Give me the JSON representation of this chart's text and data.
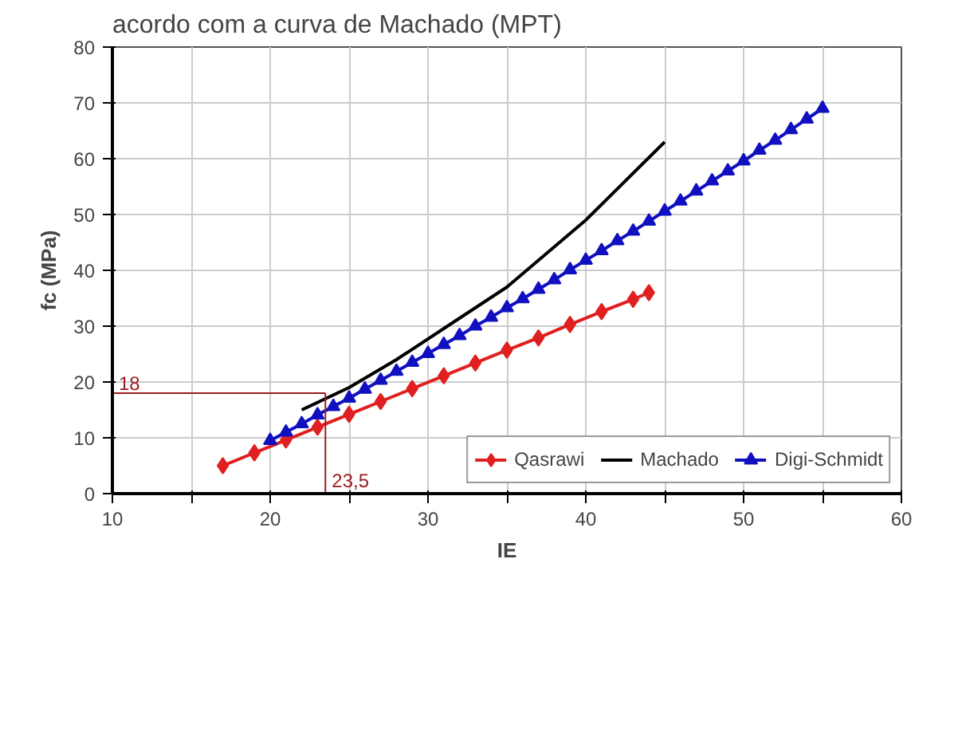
{
  "chart_data": {
    "type": "line",
    "title": "acordo com a curva de Machado (MPT)",
    "xlabel": "IE",
    "ylabel": "fc (MPa)",
    "xlim": [
      10,
      60
    ],
    "ylim": [
      0,
      80
    ],
    "xticks": [
      10,
      {
        "value": 15,
        "label": null
      },
      20,
      {
        "value": 25,
        "label": null
      },
      30,
      {
        "value": 35,
        "label": null
      },
      40,
      {
        "value": 45,
        "label": null
      },
      50,
      {
        "value": 55,
        "label": null
      },
      60
    ],
    "yticks": [
      0,
      10,
      20,
      30,
      40,
      50,
      60,
      70,
      80
    ],
    "grid": true,
    "legend": "bottom",
    "line_style": "solid",
    "series": [
      {
        "name": "Qasrawi",
        "color": "#e02020",
        "marker": "diamond",
        "x": [
          17,
          19,
          21,
          23,
          25,
          27,
          29,
          31,
          33,
          35,
          37,
          39,
          41,
          43,
          44
        ],
        "values": [
          5.0,
          7.3,
          9.6,
          11.9,
          14.2,
          16.5,
          18.8,
          21.1,
          23.4,
          25.7,
          27.9,
          30.3,
          32.6,
          34.8,
          36.0
        ]
      },
      {
        "name": "Machado",
        "color": "#000000",
        "marker": "none",
        "x": [
          22,
          25,
          28,
          31.5,
          35,
          40,
          45
        ],
        "values": [
          15,
          19,
          24,
          30.5,
          37,
          49,
          63
        ]
      },
      {
        "name": "Digi-Schmidt",
        "color": "#1010c0",
        "marker": "triangle",
        "x": [
          20,
          21,
          22,
          23,
          24,
          25,
          26,
          27,
          28,
          29,
          30,
          31,
          32,
          33,
          34,
          35,
          36,
          37,
          38,
          39,
          40,
          41,
          42,
          43,
          44,
          45,
          46,
          47,
          48,
          49,
          50,
          51,
          52,
          53,
          54,
          55
        ],
        "values": [
          9.5,
          11.0,
          12.5,
          14.1,
          15.6,
          17.1,
          18.7,
          20.3,
          21.9,
          23.5,
          25.1,
          26.7,
          28.3,
          30.0,
          31.6,
          33.3,
          34.9,
          36.6,
          38.3,
          40.1,
          41.8,
          43.5,
          45.3,
          47.0,
          48.8,
          50.6,
          52.4,
          54.2,
          56.0,
          57.8,
          59.6,
          61.5,
          63.3,
          65.2,
          67.1,
          69.0
        ]
      }
    ],
    "ref_lines": [
      {
        "axis": "y",
        "value": 18,
        "label": "18",
        "color": "#9b1c1c"
      },
      {
        "axis": "x",
        "value": 23.5,
        "label": "23,5",
        "color": "#9b1c1c"
      }
    ]
  }
}
